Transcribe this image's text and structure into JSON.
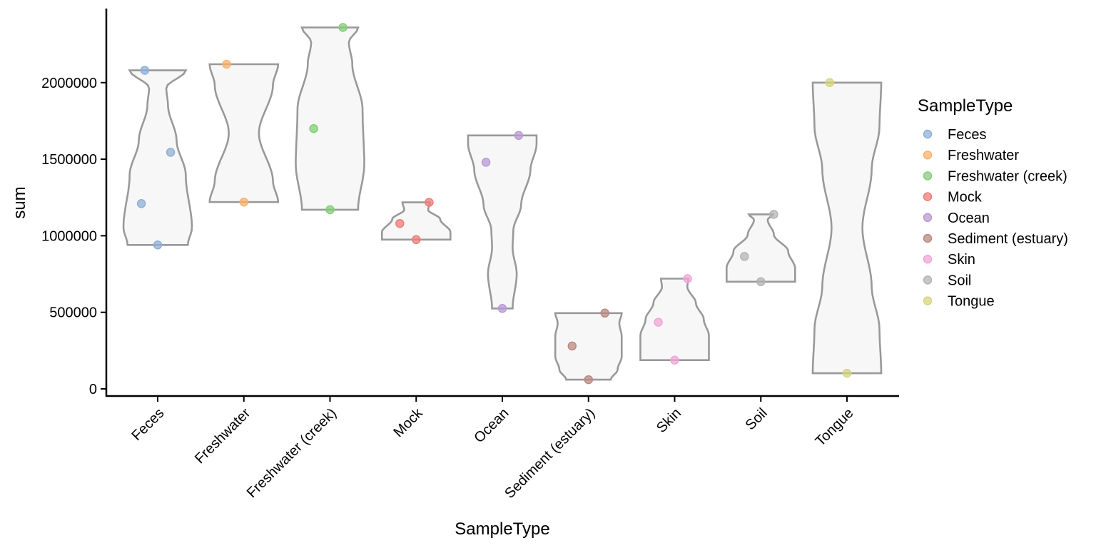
{
  "chart_data": {
    "type": "violin",
    "xlabel": "SampleType",
    "ylabel": "sum",
    "ylim": [
      -50000,
      2480000
    ],
    "y_ticks": [
      0,
      500000,
      1000000,
      1500000,
      2000000
    ],
    "y_tick_labels": [
      "0",
      "500000",
      "1000000",
      "1500000",
      "2000000"
    ],
    "grid": false,
    "legend": {
      "title": "SampleType",
      "position": "right",
      "entries": [
        "Feces",
        "Freshwater",
        "Freshwater (creek)",
        "Mock",
        "Ocean",
        "Sediment (estuary)",
        "Skin",
        "Soil",
        "Tongue"
      ]
    },
    "categories": [
      "Feces",
      "Freshwater",
      "Freshwater (creek)",
      "Mock",
      "Ocean",
      "Sediment (estuary)",
      "Skin",
      "Soil",
      "Tongue"
    ],
    "colors": [
      "#8fb0d6",
      "#f9b26e",
      "#84cf78",
      "#ee7d78",
      "#b99ad6",
      "#bb8a80",
      "#f0a6d6",
      "#b4b4b4",
      "#d6d67d"
    ],
    "violin_fill": "#f7f7f7",
    "violin_stroke": "#999999",
    "series": [
      {
        "category": "Feces",
        "points": [
          {
            "y": 2080000,
            "jitter": -0.15
          },
          {
            "y": 1545000,
            "jitter": 0.15
          },
          {
            "y": 1210000,
            "jitter": -0.19
          },
          {
            "y": 940000,
            "jitter": 0.0
          }
        ]
      },
      {
        "category": "Freshwater",
        "points": [
          {
            "y": 2120000,
            "jitter": -0.2
          },
          {
            "y": 1220000,
            "jitter": 0.0
          }
        ]
      },
      {
        "category": "Freshwater (creek)",
        "points": [
          {
            "y": 2360000,
            "jitter": 0.15
          },
          {
            "y": 1700000,
            "jitter": -0.19
          },
          {
            "y": 1170000,
            "jitter": 0.0
          }
        ]
      },
      {
        "category": "Mock",
        "points": [
          {
            "y": 1218000,
            "jitter": 0.15
          },
          {
            "y": 1080000,
            "jitter": -0.19
          },
          {
            "y": 975000,
            "jitter": 0.0
          }
        ]
      },
      {
        "category": "Ocean",
        "points": [
          {
            "y": 1655000,
            "jitter": 0.19
          },
          {
            "y": 1480000,
            "jitter": -0.19
          },
          {
            "y": 525000,
            "jitter": 0.0
          }
        ]
      },
      {
        "category": "Sediment (estuary)",
        "points": [
          {
            "y": 495000,
            "jitter": 0.19
          },
          {
            "y": 280000,
            "jitter": -0.19
          },
          {
            "y": 60000,
            "jitter": 0.0
          }
        ]
      },
      {
        "category": "Skin",
        "points": [
          {
            "y": 720000,
            "jitter": 0.15
          },
          {
            "y": 435000,
            "jitter": -0.19
          },
          {
            "y": 188000,
            "jitter": 0.0
          }
        ]
      },
      {
        "category": "Soil",
        "points": [
          {
            "y": 1140000,
            "jitter": 0.15
          },
          {
            "y": 865000,
            "jitter": -0.19
          },
          {
            "y": 700000,
            "jitter": 0.0
          }
        ]
      },
      {
        "category": "Tongue",
        "points": [
          {
            "y": 2000000,
            "jitter": -0.2
          },
          {
            "y": 102000,
            "jitter": 0.0
          }
        ]
      }
    ]
  }
}
